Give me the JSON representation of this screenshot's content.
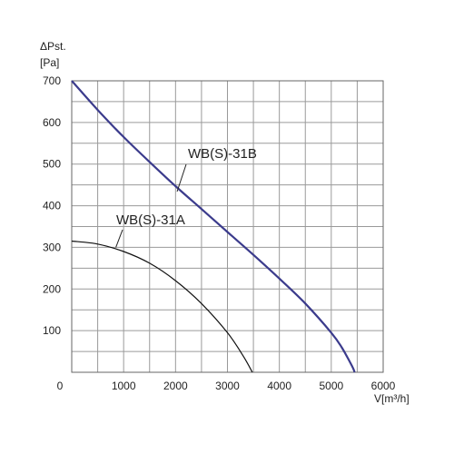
{
  "chart_data": {
    "type": "line",
    "ylabel": "ΔPst.",
    "yunit": "[Pa]",
    "xlabel": "V[m³/h]",
    "xlim": [
      0,
      6000
    ],
    "ylim": [
      0,
      700
    ],
    "xticks": [
      0,
      1000,
      2000,
      3000,
      4000,
      5000,
      6000
    ],
    "yticks": [
      100,
      200,
      300,
      400,
      500,
      600,
      700
    ],
    "xtick_labels": [
      "0",
      "1000",
      "2000",
      "3000",
      "4000",
      "5000",
      "6000"
    ],
    "ytick_labels": [
      "100",
      "200",
      "300",
      "400",
      "500",
      "600",
      "700"
    ],
    "grid": true,
    "grid_step_x": 500,
    "grid_step_y": 50,
    "series": [
      {
        "name": "WB(S)-31B",
        "color": "#3b3b8c",
        "x": [
          0,
          500,
          1000,
          1500,
          2000,
          2500,
          3000,
          3500,
          4000,
          4500,
          5000,
          5200,
          5400,
          5450
        ],
        "y": [
          700,
          630,
          565,
          505,
          447,
          392,
          337,
          282,
          225,
          165,
          95,
          60,
          15,
          0
        ]
      },
      {
        "name": "WB(S)-31A",
        "color": "#111111",
        "x": [
          0,
          500,
          1000,
          1500,
          2000,
          2500,
          3000,
          3300,
          3480
        ],
        "y": [
          315,
          308,
          290,
          262,
          220,
          165,
          95,
          40,
          0
        ]
      }
    ]
  }
}
